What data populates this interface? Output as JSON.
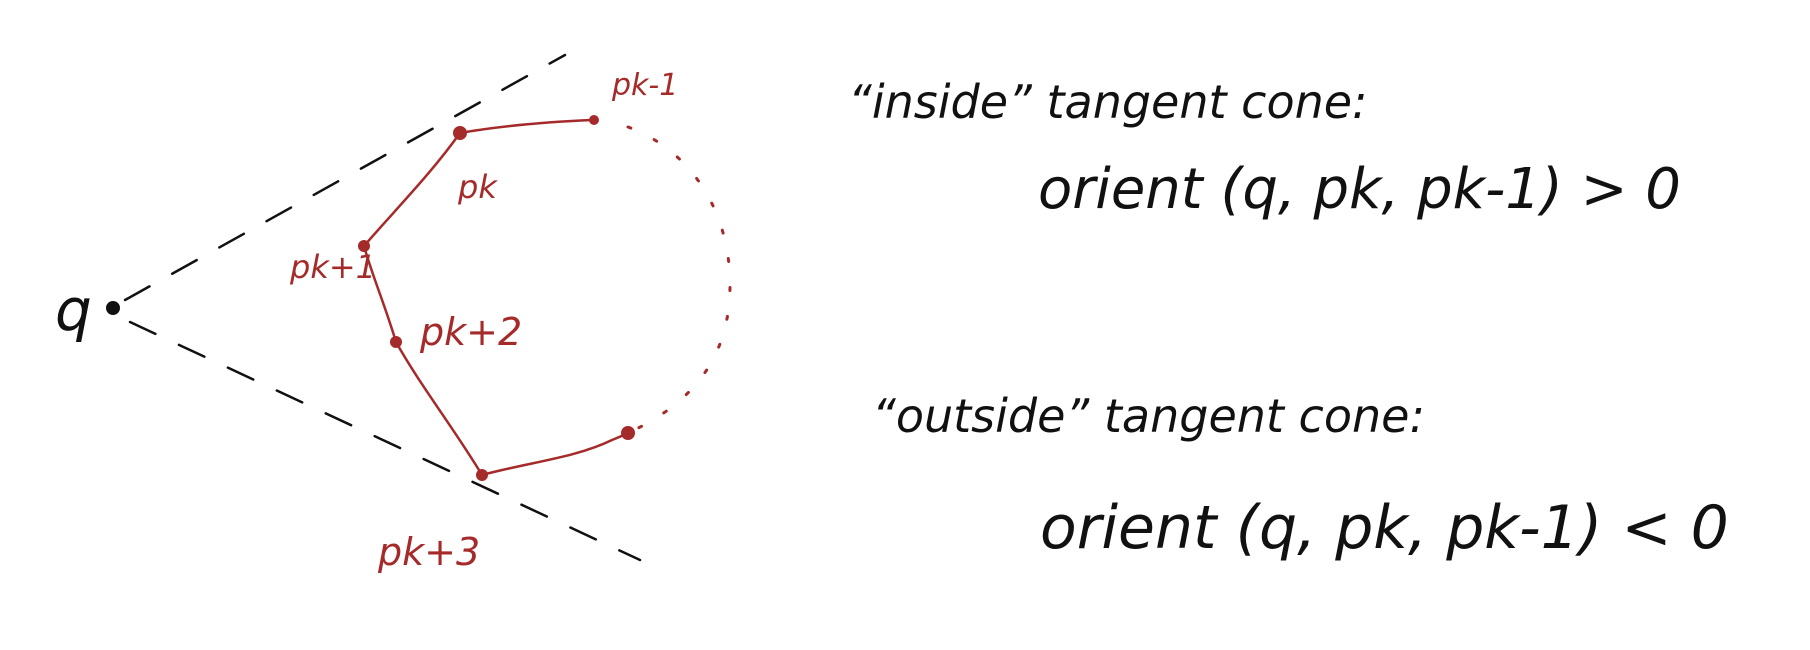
{
  "colors": {
    "ink": "#111111",
    "polygon": "#a52a2a",
    "background": "#ffffff"
  },
  "diagram": {
    "query_point_label": "q",
    "vertex_labels": {
      "p_k_minus_1": "pk-1",
      "p_k": "pk",
      "p_k_plus_1": "pk+1",
      "p_k_plus_2": "pk+2",
      "p_k_plus_3": "pk+3"
    }
  },
  "notes": {
    "inside_heading": "“inside” tangent cone:",
    "inside_condition": "orient (q, pk, pk-1) > 0",
    "outside_heading": "“outside” tangent cone:",
    "outside_condition": "orient (q, pk, pk-1) < 0"
  }
}
